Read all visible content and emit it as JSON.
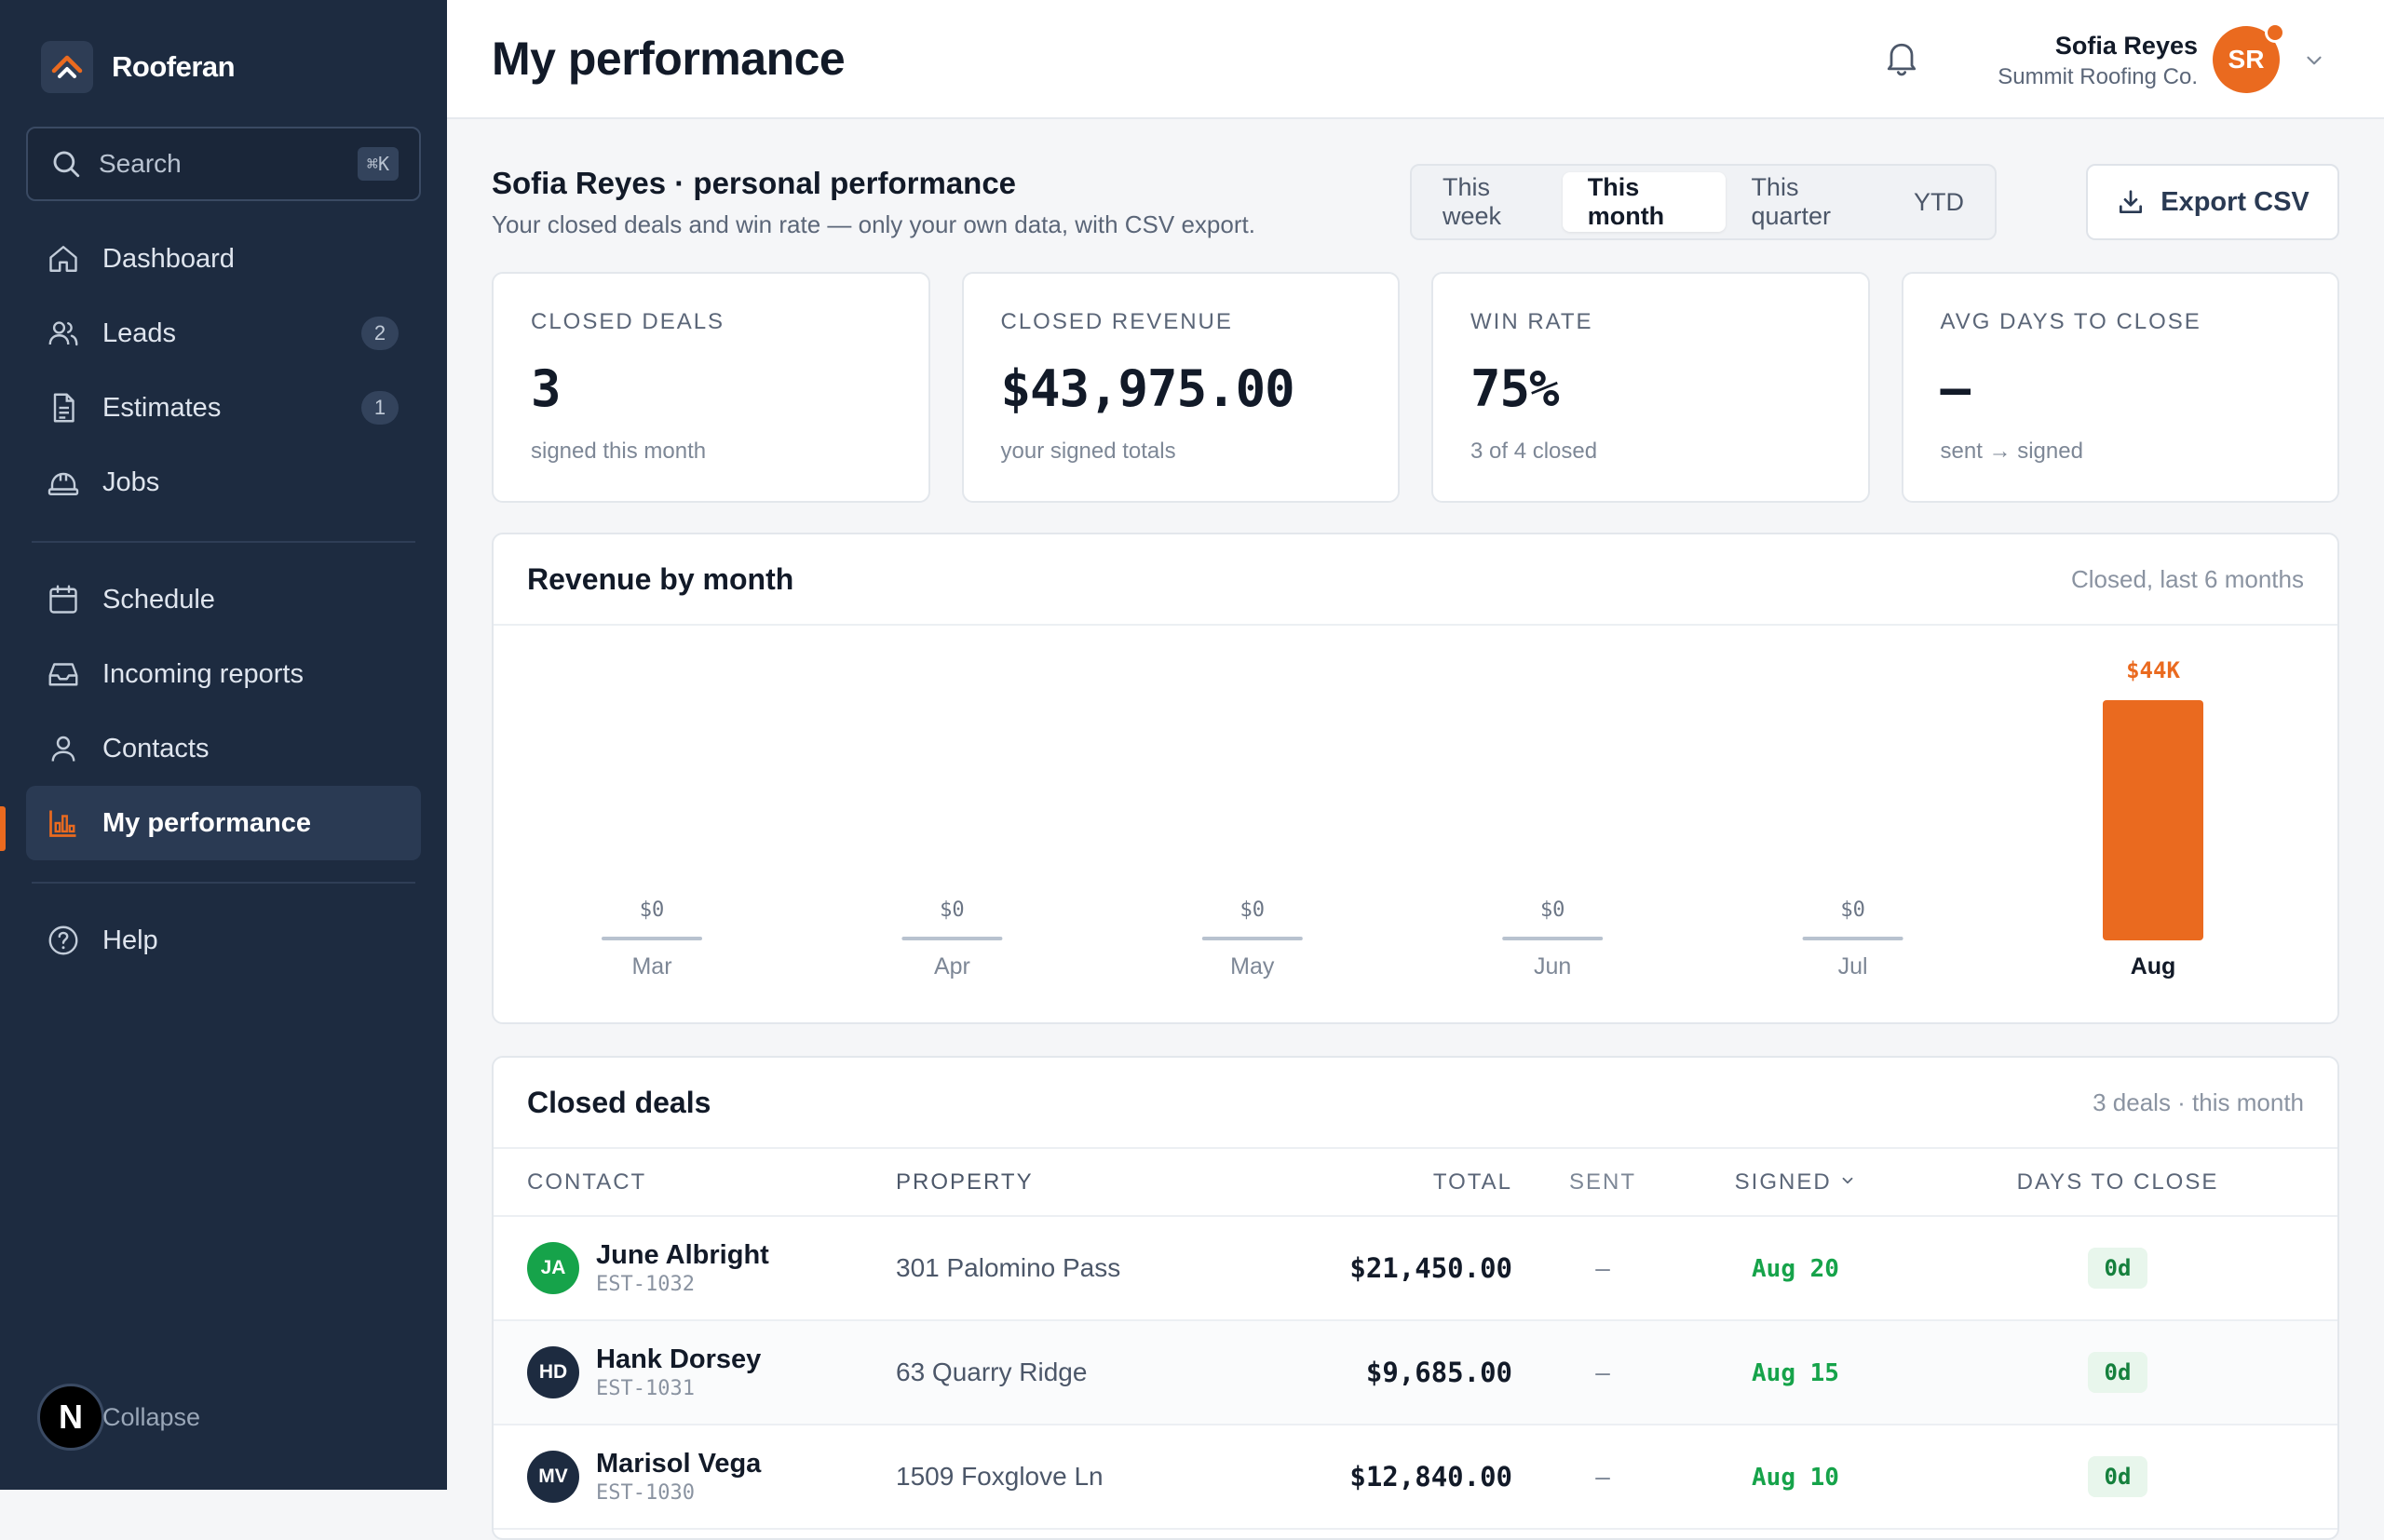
{
  "app": {
    "name": "Rooferan"
  },
  "sidebar": {
    "search_label": "Search",
    "search_shortcut": "⌘K",
    "items": [
      {
        "label": "Dashboard",
        "icon": "home-icon"
      },
      {
        "label": "Leads",
        "icon": "users-icon",
        "badge": "2"
      },
      {
        "label": "Estimates",
        "icon": "document-icon",
        "badge": "1"
      },
      {
        "label": "Jobs",
        "icon": "hardhat-icon"
      },
      {
        "label": "Schedule",
        "icon": "calendar-icon"
      },
      {
        "label": "Incoming reports",
        "icon": "inbox-icon"
      },
      {
        "label": "Contacts",
        "icon": "user-icon"
      },
      {
        "label": "My performance",
        "icon": "bar-chart-icon",
        "active": true
      },
      {
        "label": "Help",
        "icon": "help-icon"
      }
    ],
    "collapse_label": "Collapse",
    "n_badge": "N"
  },
  "header": {
    "title": "My performance",
    "user_name": "Sofia Reyes",
    "user_company": "Summit Roofing Co.",
    "user_initials": "SR"
  },
  "section": {
    "title": "Sofia Reyes · personal performance",
    "subtitle": "Your closed deals and win rate — only your own data, with CSV export.",
    "ranges": [
      "This week",
      "This month",
      "This quarter",
      "YTD"
    ],
    "selected_range": "This month",
    "export_label": "Export CSV"
  },
  "kpis": [
    {
      "label": "CLOSED DEALS",
      "value": "3",
      "note": "signed this month"
    },
    {
      "label": "CLOSED REVENUE",
      "value": "$43,975.00",
      "note": "your signed totals"
    },
    {
      "label": "WIN RATE",
      "value": "75%",
      "note": "3 of 4 closed"
    },
    {
      "label": "AVG DAYS TO CLOSE",
      "value": "–",
      "note": "sent → signed"
    }
  ],
  "revenue_card": {
    "title": "Revenue by month",
    "meta": "Closed, last 6 months"
  },
  "chart_data": {
    "type": "bar",
    "categories": [
      "Mar",
      "Apr",
      "May",
      "Jun",
      "Jul",
      "Aug"
    ],
    "values": [
      0,
      0,
      0,
      0,
      0,
      43975
    ],
    "value_labels": [
      "$0",
      "$0",
      "$0",
      "$0",
      "$0",
      "$44K"
    ],
    "highlight_index": 5,
    "title": "Revenue by month",
    "subtitle": "Closed, last 6 months",
    "colors": {
      "highlight": "#ea6a1f",
      "empty": "#b8c2cf"
    }
  },
  "deals_card": {
    "title": "Closed deals",
    "meta": "3 deals · this month",
    "columns": {
      "contact": "CONTACT",
      "property": "PROPERTY",
      "total": "TOTAL",
      "sent": "SENT",
      "signed": "SIGNED",
      "days": "DAYS TO CLOSE"
    },
    "rows": [
      {
        "initials": "JA",
        "avatar_color": "#16a34a",
        "name": "June Albright",
        "id": "EST-1032",
        "property": "301 Palomino Pass",
        "total": "$21,450.00",
        "sent": "–",
        "signed": "Aug 20",
        "days": "0d"
      },
      {
        "initials": "HD",
        "avatar_color": "#1d2b40",
        "name": "Hank Dorsey",
        "id": "EST-1031",
        "property": "63 Quarry Ridge",
        "total": "$9,685.00",
        "sent": "–",
        "signed": "Aug 15",
        "days": "0d"
      },
      {
        "initials": "MV",
        "avatar_color": "#1d2b40",
        "name": "Marisol Vega",
        "id": "EST-1030",
        "property": "1509 Foxglove Ln",
        "total": "$12,840.00",
        "sent": "–",
        "signed": "Aug 10",
        "days": "0d"
      }
    ]
  }
}
